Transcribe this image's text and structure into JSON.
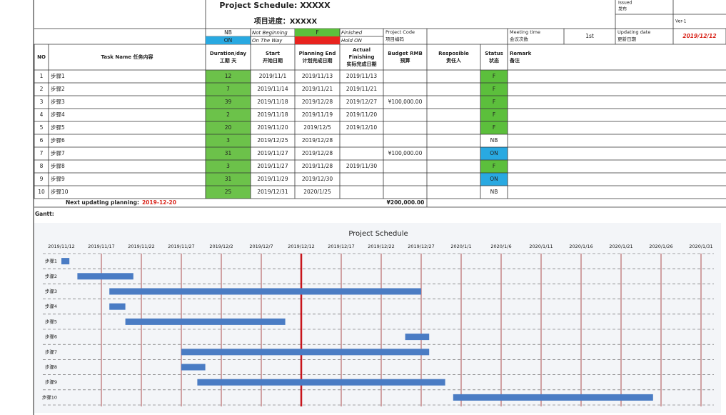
{
  "header": {
    "title": "Project Schedule: XXXXX",
    "subtitle": "项目进度：XXXXX",
    "issued": [
      "Issued",
      "发布"
    ],
    "version": "Ver-1",
    "legend": [
      {
        "code": "NB",
        "label": "Not Beginning"
      },
      {
        "code": "F",
        "label": "Finished",
        "color": "#5cbf3c"
      },
      {
        "code": "ON",
        "label": "On The Way",
        "color": "#29a9e1"
      },
      {
        "label": "Hold ON",
        "color": "#e8231e"
      }
    ],
    "project_code": [
      "Project Code",
      "项目编码"
    ],
    "meeting_time": [
      "Meeting time",
      "会议次数"
    ],
    "meeting_value": "1st",
    "updating_date_label": [
      "Updating date",
      "更新日期"
    ],
    "updating_date": "2019/12/12"
  },
  "table": {
    "duration_color": "#6cc24a",
    "columns": [
      [
        "NO"
      ],
      [
        "Task Name 任务内容"
      ],
      [
        "Duration/day",
        "工期 天"
      ],
      [
        "Start",
        "开始日期"
      ],
      [
        "Planning End",
        "计划完成日期"
      ],
      [
        "Actual",
        "Finishing",
        "实际完成日期"
      ],
      [
        "Budget RMB",
        "预算"
      ],
      [
        "Resposible",
        "责任人"
      ],
      [
        "Status",
        "状态"
      ],
      [
        "Remark",
        "备注"
      ]
    ],
    "rows": [
      {
        "no": 1,
        "task": "步骤1",
        "duration": 12,
        "start": "2019/11/1",
        "plan_end": "2019/11/13",
        "actual": "2019/11/13",
        "status": "F"
      },
      {
        "no": 2,
        "task": "步骤2",
        "duration": 7,
        "start": "2019/11/14",
        "plan_end": "2019/11/21",
        "actual": "2019/11/21",
        "status": "F"
      },
      {
        "no": 3,
        "task": "步骤3",
        "duration": 39,
        "start": "2019/11/18",
        "plan_end": "2019/12/28",
        "actual": "2019/12/27",
        "budget": "¥100,000.00",
        "status": "F"
      },
      {
        "no": 4,
        "task": "步骤4",
        "duration": 2,
        "start": "2019/11/18",
        "plan_end": "2019/11/19",
        "actual": "2019/11/20",
        "status": "F"
      },
      {
        "no": 5,
        "task": "步骤5",
        "duration": 20,
        "start": "2019/11/20",
        "plan_end": "2019/12/5",
        "actual": "2019/12/10",
        "status": "F"
      },
      {
        "no": 6,
        "task": "步骤6",
        "duration": 3,
        "start": "2019/12/25",
        "plan_end": "2019/12/28",
        "status": "NB"
      },
      {
        "no": 7,
        "task": "步骤7",
        "duration": 31,
        "start": "2019/11/27",
        "plan_end": "2019/12/28",
        "budget": "¥100,000.00",
        "status": "ON"
      },
      {
        "no": 8,
        "task": "步骤8",
        "duration": 3,
        "start": "2019/11/27",
        "plan_end": "2019/11/28",
        "actual": "2019/11/30",
        "status": "F"
      },
      {
        "no": 9,
        "task": "步骤9",
        "duration": 31,
        "start": "2019/11/29",
        "plan_end": "2019/12/30",
        "status": "ON"
      },
      {
        "no": 10,
        "task": "步骤10",
        "duration": 25,
        "start": "2019/12/31",
        "plan_end": "2020/1/25",
        "status": "NB"
      }
    ],
    "next_update_label": "Next updating  planning:",
    "next_update": "2019-12-20",
    "budget_total": "¥200,000.00"
  },
  "gantt_label": "Gantt:",
  "gantt": {
    "title": "Project Schedule",
    "bar_color": "#4a7cc4",
    "xlim": [
      "2019/11/12",
      "2020/1/31"
    ],
    "xticks": [
      "2019/11/12",
      "2019/11/17",
      "2019/11/22",
      "2019/11/27",
      "2019/12/2",
      "2019/12/7",
      "2019/12/12",
      "2019/12/17",
      "2019/12/22",
      "2019/12/27",
      "2020/1/1",
      "2020/1/6",
      "2020/1/11",
      "2020/1/16",
      "2020/1/21",
      "2020/1/26",
      "2020/1/31"
    ]
  }
}
